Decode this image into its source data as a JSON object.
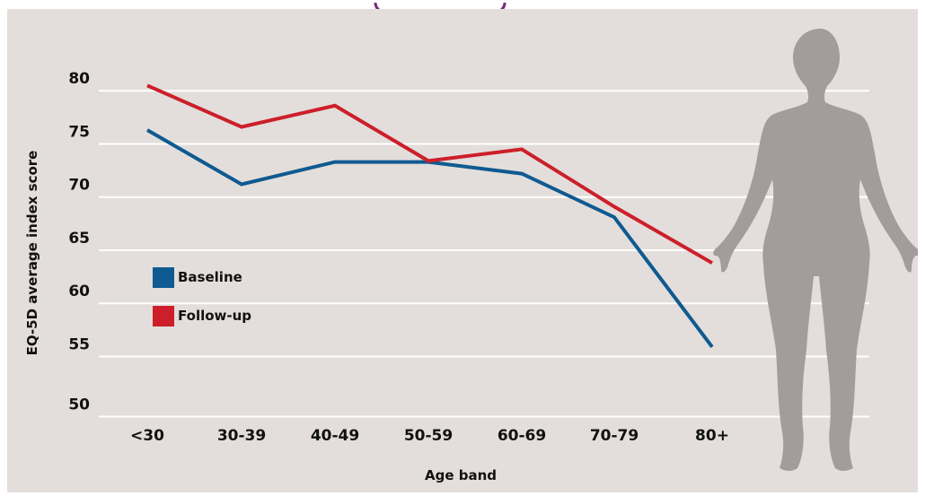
{
  "chart_data": {
    "type": "line",
    "title": "",
    "xlabel": "Age band",
    "ylabel": "EQ-5D average index score",
    "categories": [
      "<30",
      "30-39",
      "40-49",
      "50-59",
      "60-69",
      "70-79",
      "80+"
    ],
    "y_ticks": [
      "80",
      "75",
      "70",
      "65",
      "60",
      "55",
      "50"
    ],
    "ylim": [
      50,
      82
    ],
    "grid": true,
    "legend_position": "left",
    "series": [
      {
        "name": "Baseline",
        "color": "#0f5a91",
        "values": [
          76.3,
          71.2,
          73.3,
          73.3,
          72.2,
          68.1,
          55.9
        ]
      },
      {
        "name": "Follow-up",
        "color": "#cc1f2a",
        "values": [
          80.5,
          76.6,
          78.6,
          73.4,
          74.5,
          69.1,
          63.8
        ]
      }
    ],
    "background_color": "#e3dedb",
    "grid_color": "#ffffff",
    "decoration": "silhouette-icon"
  }
}
